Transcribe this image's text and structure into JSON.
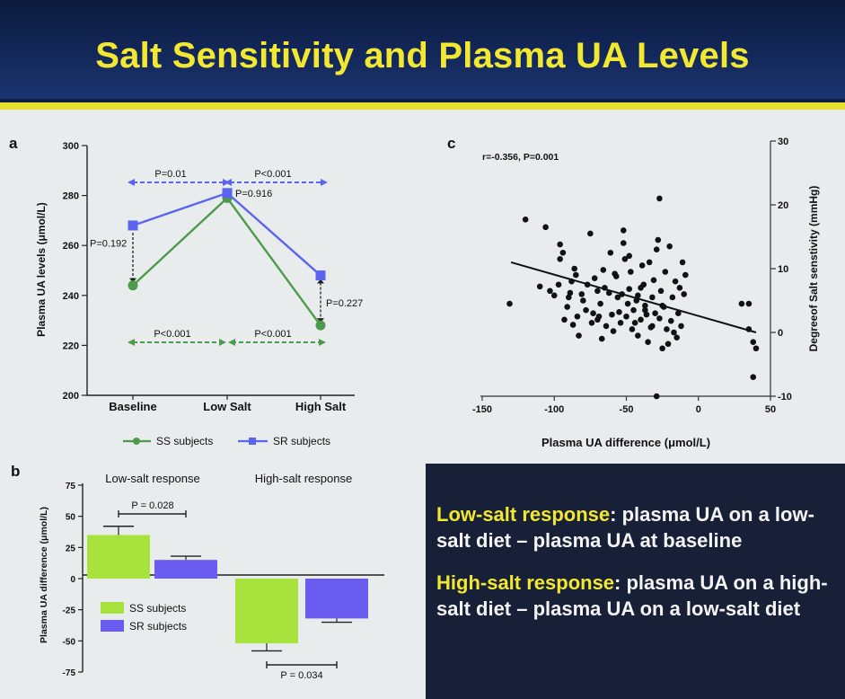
{
  "slide": {
    "title": "Salt Sensitivity and Plasma UA Levels",
    "colors": {
      "background": "#0f1f44",
      "title": "#f2e832",
      "panel": "#e9ecec",
      "accent_rule": "#e8e030"
    }
  },
  "notes": {
    "low_term": "Low-salt response",
    "low_rest": ": plasma UA on a low-salt diet – plasma UA at baseline",
    "high_term": "High-salt response",
    "high_rest": ": plasma UA on a high-salt diet – plasma UA on a low-salt diet"
  },
  "chart_data": [
    {
      "panel": "a",
      "type": "line",
      "categories": [
        "Baseline",
        "Low Salt",
        "High Salt"
      ],
      "ylabel": "Plasma UA levels (μmol/L)",
      "ylim": [
        200,
        300
      ],
      "yticks": [
        "200",
        "220",
        "240",
        "260",
        "280",
        "300"
      ],
      "series": [
        {
          "name": "SS subjects",
          "values": [
            244,
            279,
            228
          ],
          "color": "#4e9a4c"
        },
        {
          "name": "SR subjects",
          "values": [
            268,
            281,
            248
          ],
          "color": "#5a64f0"
        }
      ],
      "annotations": {
        "sr_base_low": "P=0.01",
        "sr_low_high": "P<0.001",
        "ss_base_low": "P<0.001",
        "ss_low_high": "P<0.001",
        "baseline": "P=0.192",
        "low_salt": "P=0.916",
        "high_salt": "P=0.227"
      },
      "legend_position": "bottom"
    },
    {
      "panel": "b",
      "type": "bar",
      "categories": [
        "Low-salt response",
        "High-salt response"
      ],
      "ylabel": "Plasma UA difference (μmol/L)",
      "ylim": [
        -75,
        75
      ],
      "yticks": [
        "-75",
        "-50",
        "-25",
        "0",
        "25",
        "50",
        "75"
      ],
      "series": [
        {
          "name": "SS subjects",
          "values": [
            35,
            -52
          ],
          "errors": [
            7,
            6
          ],
          "color": "#a7e33c"
        },
        {
          "name": "SR subjects",
          "values": [
            15,
            -32
          ],
          "errors": [
            3,
            3
          ],
          "color": "#6b5cf0"
        }
      ],
      "annotations": {
        "low": "P = 0.028",
        "high": "P = 0.034"
      },
      "legend_position": "bottom-left"
    },
    {
      "panel": "c",
      "type": "scatter",
      "xlabel": "Plasma UA difference (μmol/L)",
      "ylabel": "Degreeof Salt senstivity (mmHg)",
      "xlim": [
        -150,
        50
      ],
      "ylim": [
        -10,
        30
      ],
      "xticks": [
        "-150",
        "-100",
        "-50",
        "0",
        "50"
      ],
      "yticks": [
        "-10",
        "0",
        "10",
        "20",
        "30"
      ],
      "annotation": "r=-0.356, P=0.001",
      "trend_line": {
        "x": [
          -130,
          40
        ],
        "y": [
          11,
          0
        ]
      },
      "points": [
        [
          -131,
          4.5
        ],
        [
          -120,
          17.7
        ],
        [
          -110,
          7.2
        ],
        [
          -106,
          16.5
        ],
        [
          -103,
          6.5
        ],
        [
          -100,
          5.8
        ],
        [
          -97,
          7.5
        ],
        [
          -96,
          11.5
        ],
        [
          -94,
          12.5
        ],
        [
          -93,
          2
        ],
        [
          -91,
          4
        ],
        [
          -90,
          5.5
        ],
        [
          -88,
          8
        ],
        [
          -86,
          10
        ],
        [
          -85,
          9
        ],
        [
          -84,
          2.5
        ],
        [
          -83,
          -0.5
        ],
        [
          -81,
          6
        ],
        [
          -80,
          5
        ],
        [
          -78,
          3.5
        ],
        [
          -77,
          7.5
        ],
        [
          -75,
          15.5
        ],
        [
          -74,
          1.5
        ],
        [
          -73,
          3
        ],
        [
          -72,
          8.5
        ],
        [
          -70,
          6.5
        ],
        [
          -69,
          2.5
        ],
        [
          -68,
          4.5
        ],
        [
          -67,
          -1
        ],
        [
          -65,
          7
        ],
        [
          -64,
          1
        ],
        [
          -62,
          6.2
        ],
        [
          -61,
          12.5
        ],
        [
          -60,
          2.8
        ],
        [
          -59,
          0.2
        ],
        [
          -57,
          8.8
        ],
        [
          -56,
          5.5
        ],
        [
          -55,
          3.2
        ],
        [
          -54,
          1.5
        ],
        [
          -53,
          6
        ],
        [
          -52,
          14
        ],
        [
          -51,
          11.5
        ],
        [
          -50,
          2.5
        ],
        [
          -49,
          4.5
        ],
        [
          -48,
          6.8
        ],
        [
          -47,
          9.5
        ],
        [
          -46,
          0.5
        ],
        [
          -45,
          3.5
        ],
        [
          -44,
          1.5
        ],
        [
          -43,
          5
        ],
        [
          -42,
          -0.5
        ],
        [
          -40,
          2
        ],
        [
          -39,
          10.5
        ],
        [
          -38,
          7.5
        ],
        [
          -37,
          4.2
        ],
        [
          -36,
          2.8
        ],
        [
          -35,
          -1.5
        ],
        [
          -34,
          11
        ],
        [
          -33,
          0.8
        ],
        [
          -32,
          5.5
        ],
        [
          -31,
          8.2
        ],
        [
          -30,
          3
        ],
        [
          -29,
          -10
        ],
        [
          -28,
          14.5
        ],
        [
          -27,
          2.2
        ],
        [
          -26,
          6.5
        ],
        [
          -25,
          -2.5
        ],
        [
          -24,
          4
        ],
        [
          -23,
          9.5
        ],
        [
          -22,
          0.5
        ],
        [
          -21,
          -1.8
        ],
        [
          -20,
          13.5
        ],
        [
          -19,
          1.8
        ],
        [
          -18,
          5.5
        ],
        [
          -17,
          0
        ],
        [
          -16,
          8
        ],
        [
          -15,
          -0.8
        ],
        [
          -14,
          3
        ],
        [
          -13,
          7
        ],
        [
          -12,
          1
        ],
        [
          -11,
          11
        ],
        [
          -10,
          6
        ],
        [
          -9,
          9
        ],
        [
          -27,
          21
        ],
        [
          -29,
          13
        ],
        [
          -32,
          1
        ],
        [
          -37,
          3.5
        ],
        [
          -42,
          5.8
        ],
        [
          -48,
          12
        ],
        [
          -58,
          9.2
        ],
        [
          -66,
          9.8
        ],
        [
          -70,
          2
        ],
        [
          -87,
          1.2
        ],
        [
          -89,
          6.2
        ],
        [
          -96,
          13.8
        ],
        [
          -52,
          16
        ],
        [
          -40,
          7
        ],
        [
          -25,
          4.2
        ],
        [
          30,
          4.5
        ],
        [
          35,
          4.5
        ],
        [
          40,
          -2.5
        ],
        [
          35,
          0.5
        ],
        [
          38,
          -1.5
        ],
        [
          38,
          -7
        ]
      ]
    }
  ]
}
